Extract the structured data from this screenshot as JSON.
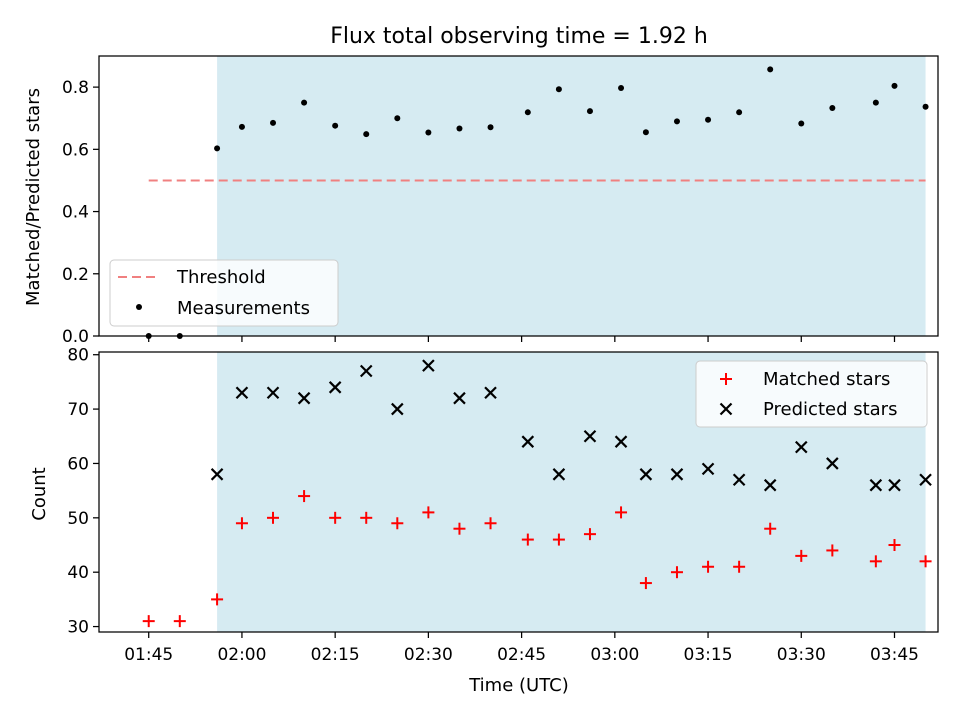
{
  "chart_data": [
    {
      "type": "scatter",
      "title": "Flux total observing time = 1.92 h",
      "xlabel": "",
      "ylabel": "Matched/Predicted stars",
      "ylim": [
        0,
        0.9
      ],
      "xlim": [
        "01:37",
        "03:52"
      ],
      "yticks": [
        "0.0",
        "0.2",
        "0.4",
        "0.6",
        "0.8"
      ],
      "shaded_interval": {
        "start": "01:56",
        "end": "03:50",
        "color": "#add8e6"
      },
      "threshold": {
        "name": "Threshold",
        "value": 0.5,
        "start": "01:45",
        "end": "03:50",
        "color": "#f08080",
        "style": "dashed"
      },
      "series": [
        {
          "name": "Measurements",
          "marker": "dot",
          "color": "#000000",
          "x": [
            "01:45",
            "01:50",
            "01:56",
            "02:00",
            "02:05",
            "02:10",
            "02:15",
            "02:20",
            "02:25",
            "02:30",
            "02:35",
            "02:40",
            "02:46",
            "02:51",
            "02:56",
            "03:01",
            "03:05",
            "03:10",
            "03:15",
            "03:20",
            "03:25",
            "03:30",
            "03:35",
            "03:42",
            "03:45",
            "03:50"
          ],
          "values": [
            0.0,
            0.0,
            0.603,
            0.672,
            0.685,
            0.75,
            0.676,
            0.649,
            0.7,
            0.654,
            0.667,
            0.671,
            0.719,
            0.793,
            0.723,
            0.797,
            0.655,
            0.69,
            0.695,
            0.719,
            0.857,
            0.683,
            0.733,
            0.75,
            0.804,
            0.737
          ]
        }
      ],
      "legend_position": "lower-left"
    },
    {
      "type": "scatter",
      "title": "",
      "xlabel": "Time (UTC)",
      "ylabel": "Count",
      "ylim": [
        29,
        80.5
      ],
      "xlim": [
        "01:37",
        "03:52"
      ],
      "yticks": [
        "30",
        "40",
        "50",
        "60",
        "70",
        "80"
      ],
      "xticks": [
        "01:45",
        "02:00",
        "02:15",
        "02:30",
        "02:45",
        "03:00",
        "03:15",
        "03:30",
        "03:45"
      ],
      "shaded_interval": {
        "start": "01:56",
        "end": "03:50",
        "color": "#add8e6"
      },
      "series": [
        {
          "name": "Matched stars",
          "marker": "plus",
          "color": "#ff0000",
          "x": [
            "01:45",
            "01:50",
            "01:56",
            "02:00",
            "02:05",
            "02:10",
            "02:15",
            "02:20",
            "02:25",
            "02:30",
            "02:35",
            "02:40",
            "02:46",
            "02:51",
            "02:56",
            "03:01",
            "03:05",
            "03:10",
            "03:15",
            "03:20",
            "03:25",
            "03:30",
            "03:35",
            "03:42",
            "03:45",
            "03:50"
          ],
          "values": [
            31,
            31,
            35,
            49,
            50,
            54,
            50,
            50,
            49,
            51,
            48,
            49,
            46,
            46,
            47,
            51,
            38,
            40,
            41,
            41,
            48,
            43,
            44,
            42,
            45,
            42
          ]
        },
        {
          "name": "Predicted stars",
          "marker": "x",
          "color": "#000000",
          "x": [
            "01:56",
            "02:00",
            "02:05",
            "02:10",
            "02:15",
            "02:20",
            "02:25",
            "02:30",
            "02:35",
            "02:40",
            "02:46",
            "02:51",
            "02:56",
            "03:01",
            "03:05",
            "03:10",
            "03:15",
            "03:20",
            "03:25",
            "03:30",
            "03:35",
            "03:42",
            "03:45",
            "03:50"
          ],
          "values": [
            58,
            73,
            73,
            72,
            74,
            77,
            70,
            78,
            72,
            73,
            64,
            58,
            65,
            64,
            58,
            58,
            59,
            57,
            56,
            63,
            60,
            56,
            56,
            57
          ]
        }
      ],
      "legend_position": "upper-right"
    }
  ]
}
